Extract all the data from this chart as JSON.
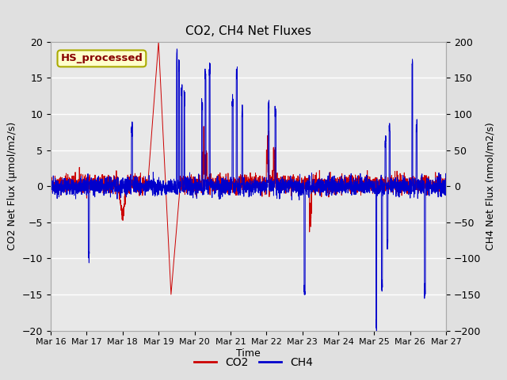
{
  "title": "CO2, CH4 Net Fluxes",
  "xlabel": "Time",
  "ylabel_left": "CO2 Net Flux (μmol/m2/s)",
  "ylabel_right": "CH4 Net Flux (nmol/m2/s)",
  "legend_label": "HS_processed",
  "co2_label": "CO2",
  "ch4_label": "CH4",
  "co2_color": "#cc0000",
  "ch4_color": "#0000cc",
  "ylim_left": [
    -20,
    20
  ],
  "ylim_right": [
    -200,
    200
  ],
  "bg_color": "#e0e0e0",
  "plot_bg_color": "#e8e8e8",
  "legend_box_facecolor": "#ffffcc",
  "legend_box_edgecolor": "#aaaa00",
  "legend_text_color": "#880000",
  "figsize": [
    6.4,
    4.8
  ],
  "dpi": 100,
  "n_points": 2880,
  "seed": 42
}
